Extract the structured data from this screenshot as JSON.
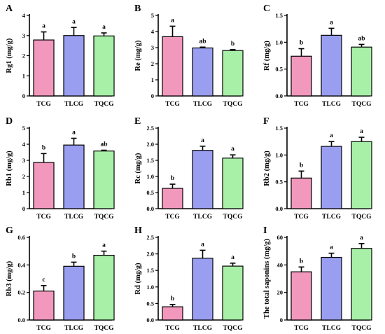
{
  "chart_data": [
    {
      "panel": "A",
      "type": "bar",
      "ylabel": "Rg1 (mg/g)",
      "categories": [
        "TCG",
        "TLCG",
        "TQCG"
      ],
      "values": [
        2.78,
        3.0,
        2.98
      ],
      "errors": [
        0.4,
        0.4,
        0.15
      ],
      "significance": [
        "a",
        "a",
        "a"
      ],
      "ylim": [
        0,
        4
      ],
      "yticks": [
        "0",
        "1",
        "2",
        "3",
        "4"
      ]
    },
    {
      "panel": "B",
      "type": "bar",
      "ylabel": "Re (mg/g)",
      "categories": [
        "TCG",
        "TLCG",
        "TQCG"
      ],
      "values": [
        3.68,
        2.98,
        2.82
      ],
      "errors": [
        0.65,
        0.05,
        0.06
      ],
      "significance": [
        "a",
        "ab",
        "b"
      ],
      "ylim": [
        0,
        5
      ],
      "yticks": [
        "0",
        "1",
        "2",
        "3",
        "4",
        "5"
      ]
    },
    {
      "panel": "C",
      "type": "bar",
      "ylabel": "Rf (mg/g)",
      "categories": [
        "TCG",
        "TLCG",
        "TQCG"
      ],
      "values": [
        0.74,
        1.13,
        0.91
      ],
      "errors": [
        0.14,
        0.13,
        0.05
      ],
      "significance": [
        "b",
        "a",
        "ab"
      ],
      "ylim": [
        0,
        1.5
      ],
      "yticks": [
        "0.0",
        "0.5",
        "1.0",
        "1.5"
      ]
    },
    {
      "panel": "D",
      "type": "bar",
      "ylabel": "Rb1 (mg/g)",
      "categories": [
        "TCG",
        "TLCG",
        "TQCG"
      ],
      "values": [
        2.87,
        3.95,
        3.58
      ],
      "errors": [
        0.55,
        0.42,
        0.05
      ],
      "significance": [
        "b",
        "a",
        "ab"
      ],
      "ylim": [
        0,
        5
      ],
      "yticks": [
        "0",
        "1",
        "2",
        "3",
        "4",
        "5"
      ]
    },
    {
      "panel": "E",
      "type": "bar",
      "ylabel": "Rc (mg/g)",
      "categories": [
        "TCG",
        "TLCG",
        "TQCG"
      ],
      "values": [
        0.63,
        1.81,
        1.57
      ],
      "errors": [
        0.13,
        0.13,
        0.1
      ],
      "significance": [
        "b",
        "a",
        "a"
      ],
      "ylim": [
        0,
        2.5
      ],
      "yticks": [
        "0.0",
        "0.5",
        "1.0",
        "1.5",
        "2.0",
        "2.5"
      ]
    },
    {
      "panel": "F",
      "type": "bar",
      "ylabel": "Rb2 (mg/g)",
      "categories": [
        "TCG",
        "TLCG",
        "TQCG"
      ],
      "values": [
        0.57,
        1.16,
        1.25
      ],
      "errors": [
        0.13,
        0.09,
        0.08
      ],
      "significance": [
        "b",
        "a",
        "a"
      ],
      "ylim": [
        0,
        1.5
      ],
      "yticks": [
        "0.0",
        "0.5",
        "1.0",
        "1.5"
      ]
    },
    {
      "panel": "G",
      "type": "bar",
      "ylabel": "Rb3 (mg/g)",
      "categories": [
        "TCG",
        "TLCG",
        "TQCG"
      ],
      "values": [
        0.21,
        0.39,
        0.47
      ],
      "errors": [
        0.04,
        0.03,
        0.03
      ],
      "significance": [
        "c",
        "b",
        "a"
      ],
      "ylim": [
        0,
        0.6
      ],
      "yticks": [
        "0.0",
        "0.2",
        "0.4",
        "0.6"
      ]
    },
    {
      "panel": "H",
      "type": "bar",
      "ylabel": "Rd (mg/g)",
      "categories": [
        "TCG",
        "TLCG",
        "TQCG"
      ],
      "values": [
        0.4,
        1.87,
        1.63
      ],
      "errors": [
        0.07,
        0.24,
        0.09
      ],
      "significance": [
        "b",
        "a",
        "a"
      ],
      "ylim": [
        0,
        2.5
      ],
      "yticks": [
        "0.0",
        "0.5",
        "1.0",
        "1.5",
        "2.0",
        "2.5"
      ]
    },
    {
      "panel": "I",
      "type": "bar",
      "ylabel": "The total saponins (mg/g)",
      "categories": [
        "TCG",
        "TLCG",
        "TQCG"
      ],
      "values": [
        35,
        45.5,
        52
      ],
      "errors": [
        3.5,
        3,
        3.5
      ],
      "significance": [
        "b",
        "a",
        "a"
      ],
      "ylim": [
        0,
        60
      ],
      "yticks": [
        "0",
        "20",
        "40",
        "60"
      ]
    }
  ],
  "colors": {
    "TCG": "#f298bd",
    "TLCG": "#9a9ef0",
    "TQCG": "#a8f0a8",
    "axis": "#000000"
  }
}
